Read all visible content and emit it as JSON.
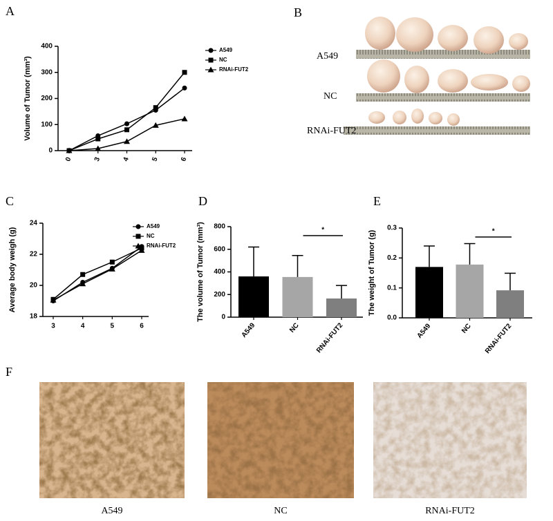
{
  "chart_data": [
    {
      "panel": "A",
      "type": "line",
      "ylabel": "Volume of Tumor (mm³)",
      "categories": [
        "0",
        "3",
        "4",
        "5",
        "6"
      ],
      "series": [
        {
          "name": "A549",
          "color": "#000000",
          "marker": "circle",
          "values": [
            0,
            57,
            103,
            155,
            240
          ]
        },
        {
          "name": "NC",
          "color": "#000000",
          "marker": "square",
          "values": [
            0,
            45,
            80,
            165,
            300
          ]
        },
        {
          "name": "RNAi-FUT2",
          "color": "#000000",
          "marker": "triangle",
          "values": [
            0,
            8,
            35,
            97,
            122
          ]
        }
      ],
      "ylim": [
        0,
        400
      ],
      "yticks": [
        0,
        100,
        200,
        300,
        400
      ],
      "legend": "right"
    },
    {
      "panel": "C",
      "type": "line",
      "ylabel": "Average body weigh (g)",
      "categories": [
        "3",
        "4",
        "5",
        "6"
      ],
      "series": [
        {
          "name": "A549",
          "color": "#000000",
          "marker": "circle",
          "values": [
            19.0,
            20.2,
            21.1,
            22.5
          ]
        },
        {
          "name": "NC",
          "color": "#000000",
          "marker": "square",
          "values": [
            19.1,
            20.7,
            21.5,
            22.4
          ]
        },
        {
          "name": "RNAi-FUT2",
          "color": "#000000",
          "marker": "triangle",
          "values": [
            19.05,
            20.1,
            21.05,
            22.25
          ]
        }
      ],
      "ylim": [
        18,
        24
      ],
      "yticks": [
        18,
        20,
        22,
        24
      ],
      "legend": "right"
    },
    {
      "panel": "D",
      "type": "bar",
      "ylabel": "The volume of Tumor (mm³)",
      "categories": [
        "A549",
        "NC",
        "RNAi-FUT2"
      ],
      "values": [
        360,
        355,
        165
      ],
      "errors": [
        260,
        190,
        115
      ],
      "colors": [
        "#000000",
        "#a6a6a6",
        "#7f7f7f"
      ],
      "ylim": [
        0,
        800
      ],
      "yticks": [
        0,
        200,
        400,
        600,
        800
      ],
      "annotation": "*"
    },
    {
      "panel": "E",
      "type": "bar",
      "ylabel": "The  weight of Tumor (g)",
      "categories": [
        "A549",
        "NC",
        "RNAi-FUT2"
      ],
      "values": [
        0.17,
        0.178,
        0.092
      ],
      "errors": [
        0.07,
        0.07,
        0.057
      ],
      "colors": [
        "#000000",
        "#a6a6a6",
        "#7f7f7f"
      ],
      "ylim": [
        0,
        0.3
      ],
      "yticks": [
        {
          "value": 0,
          "label": "0.0"
        },
        0.1,
        0.2,
        0.3
      ],
      "annotation": "*"
    }
  ],
  "photos": {
    "panel": "B",
    "labels": [
      "A549",
      "NC",
      "RNAi-FUT2"
    ]
  },
  "histology": {
    "panel": "F",
    "labels": [
      "A549",
      "NC",
      "RNAi-FUT2"
    ]
  }
}
